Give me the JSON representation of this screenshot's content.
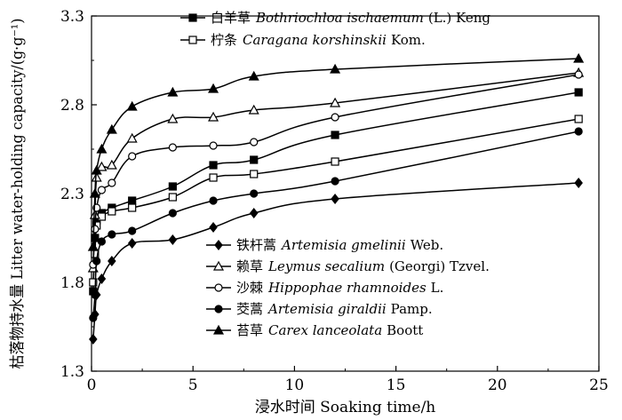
{
  "chart_data": {
    "type": "line",
    "xlabel": "浸水时间 Soaking time/h",
    "ylabel": "枯落物持水量 Litter water-holding capacity/(g·g⁻¹)",
    "xlim": [
      0,
      25
    ],
    "ylim": [
      1.3,
      3.3
    ],
    "xticks": [
      "0",
      "5",
      "10",
      "15",
      "20",
      "25"
    ],
    "yticks": [
      "1.3",
      "1.8",
      "2.3",
      "2.8",
      "3.3"
    ],
    "grid": false,
    "series": [
      {
        "name_cn": "白羊草",
        "name_latin": "Bothriochloa ischaemum",
        "name_rest": "(L.) Keng",
        "marker": "square-filled",
        "x": [
          0.08,
          0.17,
          0.25,
          0.5,
          1,
          2,
          4,
          6,
          8,
          12,
          24
        ],
        "y": [
          1.75,
          2.05,
          2.15,
          2.19,
          2.22,
          2.26,
          2.34,
          2.46,
          2.49,
          2.63,
          2.87
        ]
      },
      {
        "name_cn": "柠条",
        "name_latin": "Caragana korshinskii",
        "name_rest": "Kom.",
        "marker": "square-open",
        "x": [
          0.08,
          0.17,
          0.25,
          0.5,
          1,
          2,
          4,
          6,
          8,
          12,
          24
        ],
        "y": [
          1.8,
          1.96,
          2.12,
          2.17,
          2.2,
          2.22,
          2.28,
          2.39,
          2.41,
          2.48,
          2.72
        ]
      },
      {
        "name_cn": "铁杆蒿",
        "name_latin": "Artemisia gmelinii",
        "name_rest": "Web.",
        "marker": "diamond-filled",
        "x": [
          0.08,
          0.17,
          0.25,
          0.5,
          1,
          2,
          4,
          6,
          8,
          12,
          24
        ],
        "y": [
          1.48,
          1.62,
          1.73,
          1.82,
          1.92,
          2.02,
          2.04,
          2.11,
          2.19,
          2.27,
          2.36
        ]
      },
      {
        "name_cn": "赖草",
        "name_latin": "Leymus secalium",
        "name_rest": "(Georgi) Tzvel.",
        "marker": "triangle-open",
        "x": [
          0.08,
          0.17,
          0.25,
          0.5,
          1,
          2,
          4,
          6,
          8,
          12,
          24
        ],
        "y": [
          1.88,
          2.18,
          2.39,
          2.45,
          2.46,
          2.61,
          2.72,
          2.73,
          2.77,
          2.81,
          2.98
        ]
      },
      {
        "name_cn": "沙棘",
        "name_latin": "Hippophae rhamnoides",
        "name_rest": "L.",
        "marker": "circle-open",
        "x": [
          0.08,
          0.17,
          0.25,
          0.5,
          1,
          2,
          4,
          6,
          8,
          12,
          24
        ],
        "y": [
          1.9,
          2.1,
          2.22,
          2.32,
          2.36,
          2.51,
          2.56,
          2.57,
          2.59,
          2.73,
          2.97
        ]
      },
      {
        "name_cn": "茭蒿",
        "name_latin": "Artemisia giraldii",
        "name_rest": "Pamp.",
        "marker": "circle-filled",
        "x": [
          0.08,
          0.17,
          0.25,
          0.5,
          1,
          2,
          4,
          6,
          8,
          12,
          24
        ],
        "y": [
          1.6,
          1.73,
          1.92,
          2.03,
          2.07,
          2.09,
          2.19,
          2.26,
          2.3,
          2.37,
          2.65
        ]
      },
      {
        "name_cn": "苔草",
        "name_latin": "Carex lanceolata",
        "name_rest": "Boott",
        "marker": "triangle-filled",
        "x": [
          0.08,
          0.17,
          0.25,
          0.5,
          1,
          2,
          4,
          6,
          8,
          12,
          24
        ],
        "y": [
          2.0,
          2.3,
          2.43,
          2.55,
          2.66,
          2.79,
          2.87,
          2.89,
          2.96,
          3.0,
          3.06
        ]
      }
    ]
  }
}
